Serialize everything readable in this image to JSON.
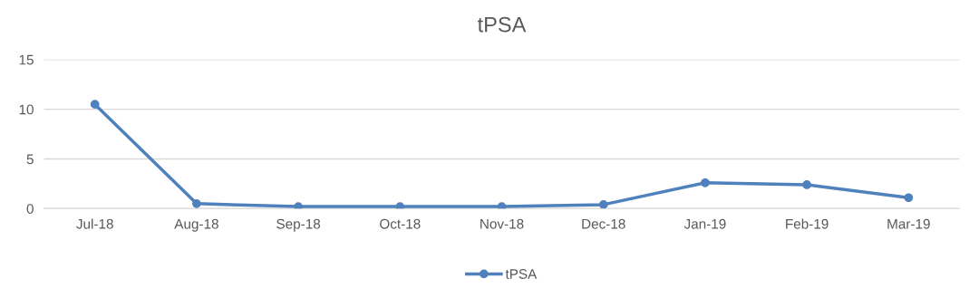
{
  "chart_data": {
    "type": "line",
    "title": "tPSA",
    "categories": [
      "Jul-18",
      "Aug-18",
      "Sep-18",
      "Oct-18",
      "Nov-18",
      "Dec-18",
      "Jan-19",
      "Feb-19",
      "Mar-19"
    ],
    "series": [
      {
        "name": "tPSA",
        "color": "#4f81bd",
        "values": [
          10.5,
          0.5,
          0.2,
          0.2,
          0.2,
          0.4,
          2.6,
          2.4,
          1.1
        ]
      }
    ],
    "ylim": [
      0,
      15
    ],
    "yticks": [
      0,
      5,
      10,
      15
    ],
    "grid": "y",
    "legend": "bottom",
    "marker": "circle",
    "line_style": "solid"
  }
}
